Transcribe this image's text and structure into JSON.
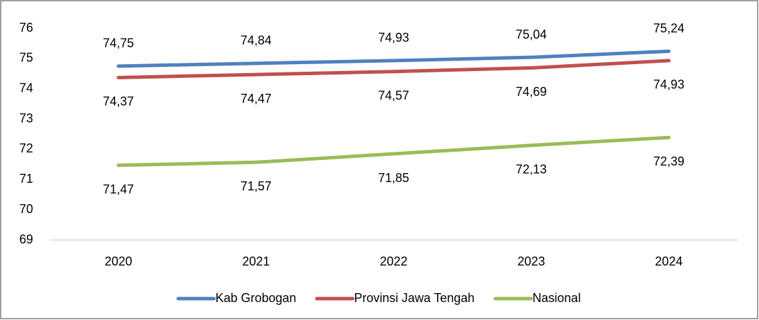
{
  "chart_data": {
    "type": "line",
    "categories": [
      "2020",
      "2021",
      "2022",
      "2023",
      "2024"
    ],
    "series": [
      {
        "name": "Kab Grobogan",
        "color": "#4f81bd",
        "label_color": "#4f81bd",
        "values": [
          74.75,
          74.84,
          74.93,
          75.04,
          75.24
        ],
        "value_labels": [
          "74,75",
          "74,84",
          "74,93",
          "75,04",
          "75,24"
        ]
      },
      {
        "name": "Provinsi Jawa Tengah",
        "color": "#c0504d",
        "label_color": "#9e3a38",
        "values": [
          74.37,
          74.47,
          74.57,
          74.69,
          74.93
        ],
        "value_labels": [
          "74,37",
          "74,47",
          "74,57",
          "74,69",
          "74,93"
        ]
      },
      {
        "name": "Nasional",
        "color": "#9bbb59",
        "label_color": "#000000",
        "values": [
          71.47,
          71.57,
          71.85,
          72.13,
          72.39
        ],
        "value_labels": [
          "71,47",
          "71,57",
          "71,85",
          "72,13",
          "72,39"
        ]
      }
    ],
    "ylim": [
      69,
      76
    ],
    "yticks": [
      69,
      70,
      71,
      72,
      73,
      74,
      75,
      76
    ],
    "grid": false,
    "legend": "bottom"
  }
}
